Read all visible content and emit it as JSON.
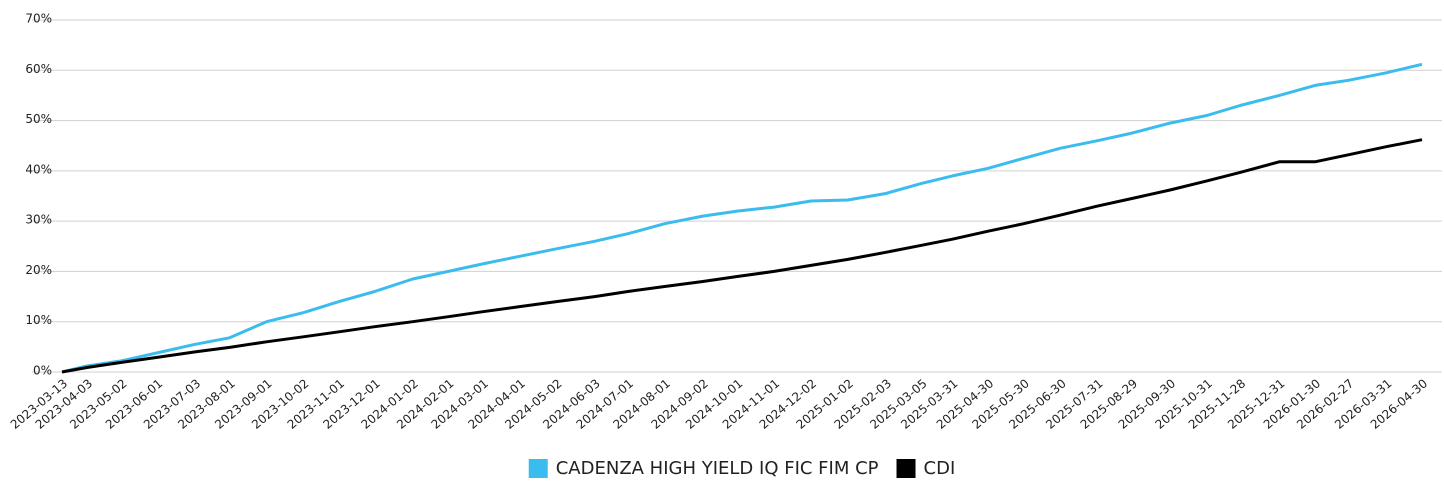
{
  "chart_data": {
    "type": "line",
    "x": [
      "2023-03-13",
      "2023-04-03",
      "2023-05-02",
      "2023-06-01",
      "2023-07-03",
      "2023-08-01",
      "2023-09-01",
      "2023-10-02",
      "2023-11-01",
      "2023-12-01",
      "2024-01-02",
      "2024-02-01",
      "2024-03-01",
      "2024-04-01",
      "2024-05-02",
      "2024-06-03",
      "2024-07-01",
      "2024-08-01",
      "2024-09-02",
      "2024-10-01",
      "2024-11-01",
      "2024-12-02",
      "2025-01-02",
      "2025-02-03",
      "2025-03-05",
      "2025-03-31",
      "2025-04-30",
      "2025-05-30",
      "2025-06-30",
      "2025-07-31",
      "2025-08-29",
      "2025-09-30",
      "2025-10-31",
      "2025-11-28",
      "2025-12-31",
      "2026-01-30",
      "2026-02-27",
      "2026-03-31",
      "2026-04-30"
    ],
    "series": [
      {
        "name": "CADENZA HIGH YIELD IQ FIC FIM CP",
        "color": "#3bbcee",
        "values": [
          0,
          1.2,
          2.2,
          3.8,
          5.5,
          6.8,
          10,
          11.8,
          14,
          16,
          18.5,
          20,
          21.5,
          23,
          24.5,
          26,
          27.5,
          29.5,
          31,
          32,
          32.8,
          34,
          34.2,
          35.5,
          37.5,
          39,
          40.5,
          42.5,
          44.5,
          46,
          47.5,
          49.5,
          51,
          53,
          55,
          57,
          58,
          59.5,
          61.2
        ]
      },
      {
        "name": "CDI",
        "color": "#000000",
        "values": [
          0,
          0.9,
          1.9,
          2.9,
          4,
          4.9,
          6,
          7,
          8,
          9,
          10,
          11,
          12,
          13,
          14,
          15,
          16,
          17,
          18,
          19,
          20,
          21.2,
          22.4,
          23.8,
          25.2,
          26.4,
          28,
          29.5,
          31.2,
          33,
          34.5,
          36.2,
          38,
          39.7,
          41.8,
          41.8,
          43.2,
          44.8,
          46.2
        ]
      }
    ],
    "ylim": [
      0,
      70
    ],
    "yticks": [
      {
        "value": 0,
        "label": "0%"
      },
      {
        "value": 10,
        "label": "10%"
      },
      {
        "value": 20,
        "label": "20%"
      },
      {
        "value": 30,
        "label": "30%"
      },
      {
        "value": 40,
        "label": "40%"
      },
      {
        "value": 50,
        "label": "50%"
      },
      {
        "value": 60,
        "label": "60%"
      },
      {
        "value": 70,
        "label": "70%"
      }
    ],
    "grid": true,
    "legend": "bottom"
  }
}
